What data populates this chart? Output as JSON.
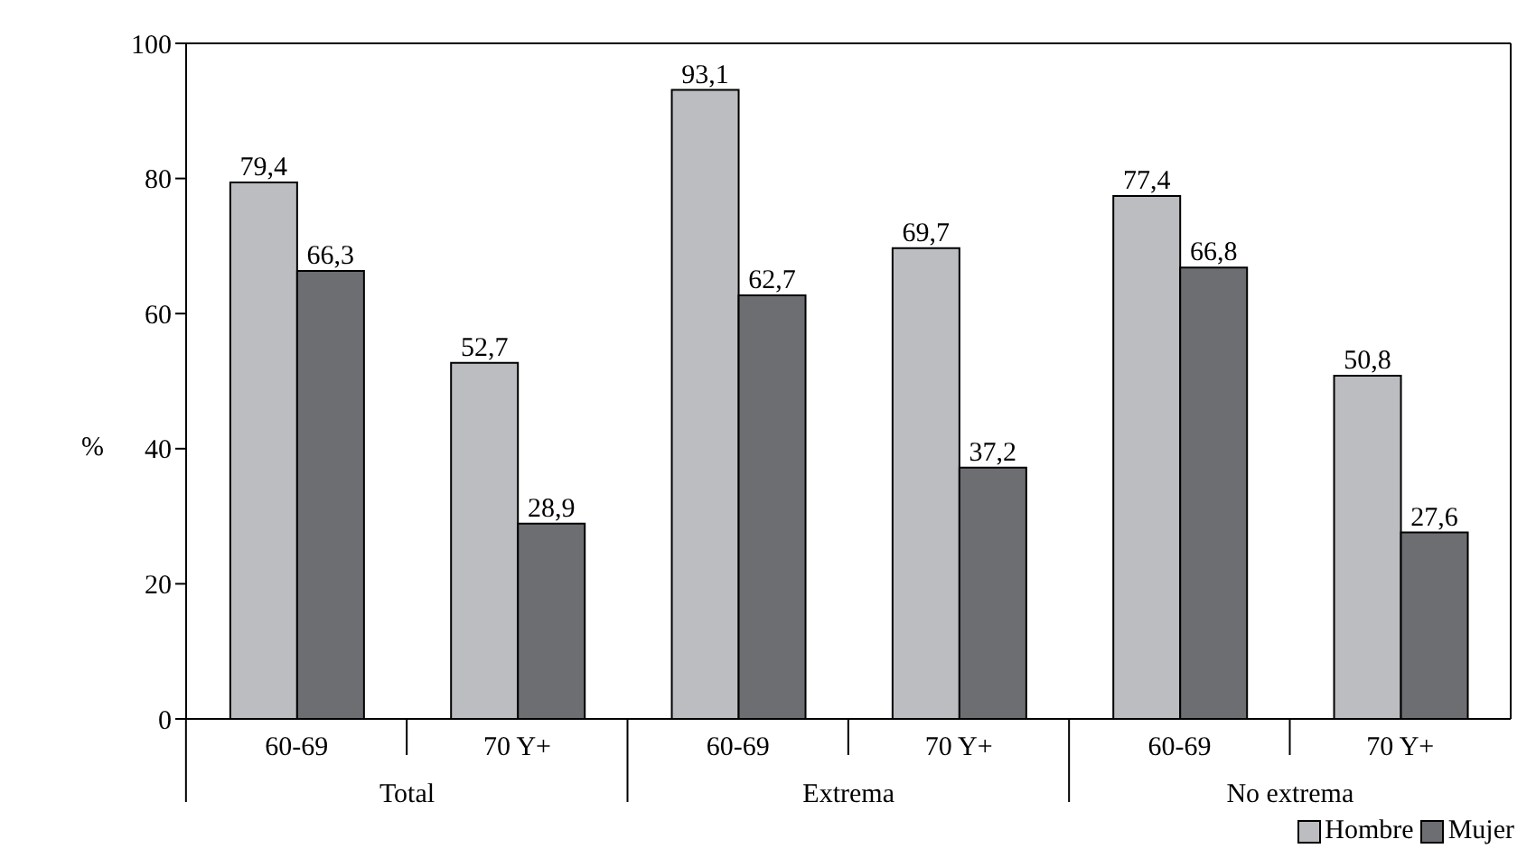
{
  "chart_data": {
    "type": "bar",
    "ylabel": "%",
    "categories": [
      "60-69",
      "70 Y+",
      "60-69",
      "70 Y+",
      "60-69",
      "70 Y+"
    ],
    "series": [
      {
        "name": "Hombre",
        "color": "#bcbdc1",
        "values": [
          79.4,
          52.7,
          93.1,
          69.7,
          77.4,
          50.8
        ],
        "value_labels": [
          "79,4",
          "52,7",
          "93,1",
          "69,7",
          "77,4",
          "50,8"
        ]
      },
      {
        "name": "Mujer",
        "color": "#6d6e72",
        "values": [
          66.3,
          28.9,
          62.7,
          37.2,
          66.8,
          27.6
        ],
        "value_labels": [
          "66,3",
          "28,9",
          "62,7",
          "37,2",
          "66,8",
          "27,6"
        ]
      }
    ],
    "annotations": [
      "Total",
      "Extrema",
      "No extrema"
    ],
    "ylim": [
      0,
      100
    ],
    "yticks": [
      0,
      20,
      40,
      60,
      80,
      100
    ],
    "grid": false,
    "legend": "bottom right"
  }
}
